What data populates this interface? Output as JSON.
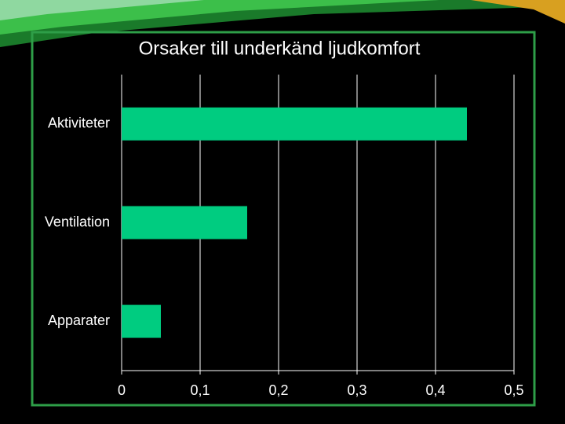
{
  "chart_data": {
    "type": "bar",
    "orientation": "horizontal",
    "title": "Orsaker till underkänd ljudkomfort",
    "categories": [
      "Aktiviteter",
      "Ventilation",
      "Apparater"
    ],
    "values": [
      0.44,
      0.16,
      0.05
    ],
    "color": "#00cc80",
    "xlim": [
      0,
      0.5
    ],
    "xticks": [
      0,
      {
        "value": 0.1,
        "label": "0,1"
      },
      {
        "value": 0.2,
        "label": "0,2"
      },
      {
        "value": 0.3,
        "label": "0,3"
      },
      {
        "value": 0.4,
        "label": "0,4"
      },
      {
        "value": 0.5,
        "label": "0,5"
      }
    ],
    "grid": true
  }
}
